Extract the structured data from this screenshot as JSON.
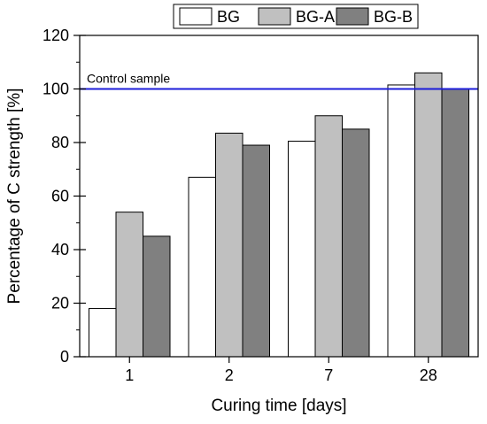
{
  "chart_data": {
    "type": "bar",
    "title": "",
    "xlabel": "Curing time [days]",
    "ylabel": "Percentage of C strength [%]",
    "categories": [
      "1",
      "2",
      "7",
      "28"
    ],
    "ylim": [
      0,
      120
    ],
    "yticks": [
      0,
      20,
      40,
      60,
      80,
      100,
      120
    ],
    "series": [
      {
        "name": "BG",
        "values": [
          18,
          67,
          80.5,
          101.5
        ],
        "color": "#ffffff"
      },
      {
        "name": "BG-A",
        "values": [
          54,
          83.5,
          90,
          106
        ],
        "color": "#c0c0c0"
      },
      {
        "name": "BG-B",
        "values": [
          45,
          79,
          85,
          100
        ],
        "color": "#808080"
      }
    ],
    "reference_line": {
      "label": "Control sample",
      "value": 100,
      "color": "#1c1cd9"
    },
    "legend": "top-right",
    "grid": false
  }
}
